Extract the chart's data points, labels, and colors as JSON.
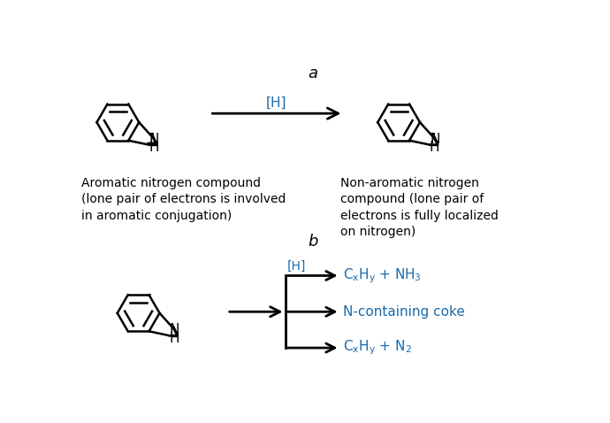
{
  "bg_color": "#ffffff",
  "text_color": "#000000",
  "blue_color": "#1a6aab",
  "label_a": "a",
  "label_b": "b",
  "label_H": "[H]",
  "text_aromatic": "Aromatic nitrogen compound\n(lone pair of electrons is involved\nin aromatic conjugation)",
  "text_nonaromatic": "Non-aromatic nitrogen\ncompound (lone pair of\nelectrons is fully localized\non nitrogen)",
  "product1a": "C",
  "product1b": "x",
  "product1c": "H",
  "product1d": "y",
  "product1e": " + NH",
  "product1f": "3",
  "product2": "N-containing coke",
  "product3a": "C",
  "product3b": "x",
  "product3c": "H",
  "product3d": "y",
  "product3e": " + N",
  "product3f": "2",
  "figsize": [
    6.9,
    4.78
  ],
  "dpi": 100
}
